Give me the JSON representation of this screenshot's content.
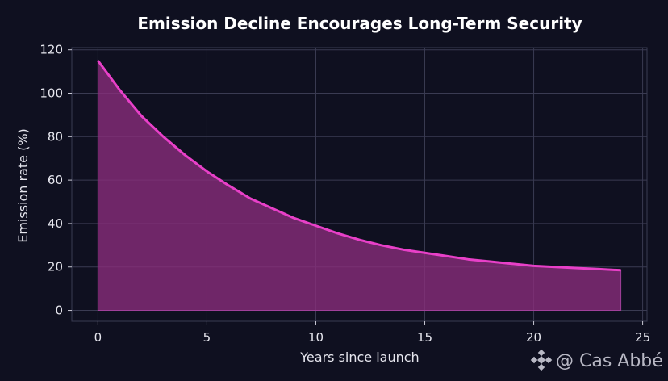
{
  "chart_data": {
    "type": "area",
    "title": "Emission Decline Encourages Long-Term Security",
    "xlabel": "Years since launch",
    "ylabel": "Emission rate (%)",
    "xlim": [
      -1.2,
      25.2
    ],
    "ylim": [
      -5,
      121
    ],
    "xticks": [
      0,
      5,
      10,
      15,
      20,
      25
    ],
    "yticks": [
      0,
      20,
      40,
      60,
      80,
      100,
      120
    ],
    "grid": true,
    "series": [
      {
        "x": [
          0,
          1,
          2,
          3,
          4,
          5,
          6,
          7,
          8,
          9,
          10,
          11,
          12,
          13,
          14,
          15,
          16,
          17,
          18,
          19,
          20,
          21,
          22,
          23,
          24
        ],
        "y": [
          115,
          101.5,
          89.5,
          80,
          71.5,
          64,
          57.5,
          51.5,
          47,
          42.5,
          39,
          35.5,
          32.5,
          30,
          28,
          26.5,
          25,
          23.5,
          22.5,
          21.5,
          20.5,
          20,
          19.5,
          19,
          18.5
        ]
      }
    ],
    "colors": {
      "line": "#e840c8",
      "fill": "#8a2d7c",
      "background": "#0f1020",
      "grid": "#3a3b52"
    }
  },
  "watermark": {
    "text": "@ Cas Abbé",
    "icon": "binance-icon"
  }
}
